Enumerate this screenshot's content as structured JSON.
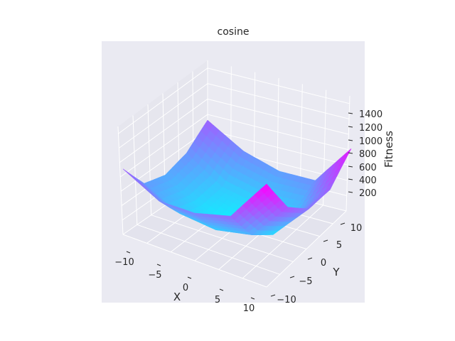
{
  "chart_data": {
    "type": "surface",
    "title": "cosine",
    "xlabel": "X",
    "ylabel": "Y",
    "zlabel": "Fitness",
    "x_ticks": [
      "−10",
      "−5",
      "0",
      "5",
      "10"
    ],
    "y_ticks": [
      "−10",
      "−5",
      "0",
      "5",
      "10"
    ],
    "z_ticks": [
      "200",
      "400",
      "600",
      "800",
      "1000",
      "1200",
      "1400"
    ],
    "xlim": [
      -12,
      12
    ],
    "ylim": [
      -12,
      12
    ],
    "zlim": [
      0,
      1500
    ],
    "grid": true,
    "colormap": "cool",
    "colormap_colors": [
      "#00ffff",
      "#ff00ff"
    ],
    "surface_samples": {
      "x": [
        -12,
        -6,
        0,
        6,
        12
      ],
      "y": [
        -12,
        -6,
        0,
        6,
        12
      ],
      "z": [
        [
          870,
          630,
          650,
          800,
          1450
        ],
        [
          500,
          270,
          230,
          350,
          950
        ],
        [
          430,
          180,
          30,
          150,
          740
        ],
        [
          550,
          250,
          190,
          280,
          840
        ],
        [
          850,
          590,
          490,
          560,
          1300
        ]
      ]
    }
  },
  "colors": {
    "pane_back": "#eaeaf2",
    "pane_floor": "#e3e3ed",
    "pane_side": "#e6e6ee",
    "grid": "#ffffff",
    "text": "#262626"
  }
}
